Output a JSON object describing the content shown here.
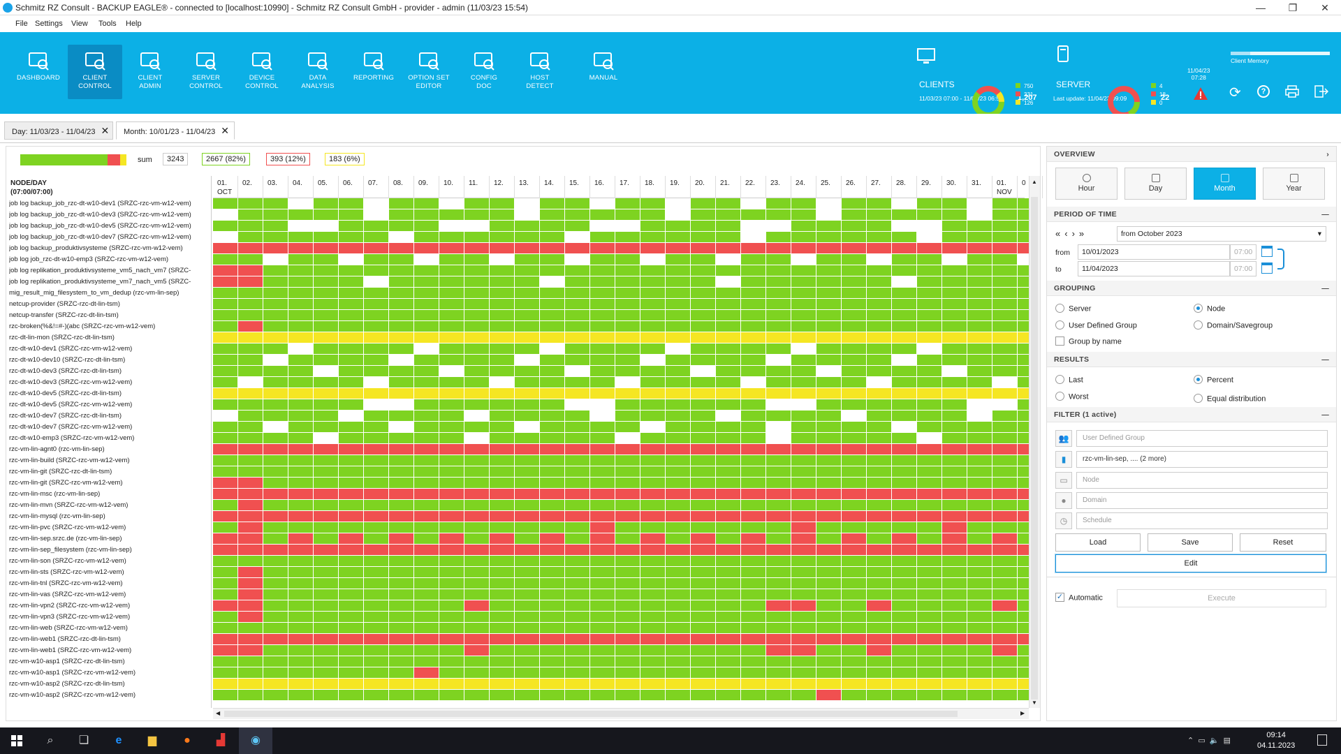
{
  "window": {
    "title": "Schmitz RZ Consult - BACKUP EAGLE® - connected to [localhost:10990] - Schmitz RZ Consult GmbH - provider - admin (11/03/23 15:54)",
    "controls": [
      "—",
      "❐",
      "✕"
    ]
  },
  "menu": [
    "File",
    "Settings",
    "View",
    "Tools",
    "Help"
  ],
  "ribbon": {
    "buttons": [
      {
        "label": "DASHBOARD",
        "icon": "dashboard-icon"
      },
      {
        "label": "CLIENT\nCONTROL",
        "icon": "client-control-icon",
        "active": true
      },
      {
        "label": "CLIENT\nADMIN",
        "icon": "client-admin-icon"
      },
      {
        "label": "SERVER\nCONTROL",
        "icon": "server-control-icon"
      },
      {
        "label": "DEVICE\nCONTROL",
        "icon": "device-control-icon"
      },
      {
        "label": "DATA\nANALYSIS",
        "icon": "data-analysis-icon"
      },
      {
        "label": "REPORTING",
        "icon": "reporting-icon"
      },
      {
        "label": "OPTION SET\nEDITOR",
        "icon": "option-set-editor-icon"
      },
      {
        "label": "CONFIG\nDOC",
        "icon": "config-doc-icon"
      },
      {
        "label": "HOST\nDETECT",
        "icon": "host-detect-icon"
      },
      {
        "label": "MANUAL",
        "icon": "manual-icon"
      }
    ],
    "clients": {
      "label": "CLIENTS",
      "range": "11/03/23 07:00 - 11/04/23 06:59",
      "total": "1,207",
      "counts": [
        "750",
        "331",
        "126"
      ]
    },
    "server": {
      "label": "SERVER",
      "last_update": "Last update: 11/04/23 09:09",
      "total": "22",
      "counts": [
        "4",
        "18",
        "0"
      ]
    },
    "datetime": "11/04/23\n07:28",
    "client_memory": "Client Memory"
  },
  "tabs": [
    {
      "label": "Day: 11/03/23 - 11/04/23",
      "active": false
    },
    {
      "label": "Month: 10/01/23 - 11/04/23",
      "active": true
    }
  ],
  "stats": {
    "sum_label": "sum",
    "sum": "3243",
    "green": "2667 (82%)",
    "red": "393 (12%)",
    "yellow": "183 (6%)"
  },
  "grid": {
    "node_header": "NODE/DAY\n(07:00/07:00)",
    "days": [
      "01.\nOCT",
      "02.",
      "03.",
      "04.",
      "05.",
      "06.",
      "07.",
      "08.",
      "09.",
      "10.",
      "11.",
      "12.",
      "13.",
      "14.",
      "15.",
      "16.",
      "17.",
      "18.",
      "19.",
      "20.",
      "21.",
      "22.",
      "23.",
      "24.",
      "25.",
      "26.",
      "27.",
      "28.",
      "29.",
      "30.",
      "31.",
      "01.\nNOV",
      "0"
    ],
    "nodes": [
      "job log backup_job_rzc-dt-w10-dev1 (SRZC-rzc-vm-w12-vem)",
      "job log backup_job_rzc-dt-w10-dev3 (SRZC-rzc-vm-w12-vem)",
      "job log backup_job_rzc-dt-w10-dev5 (SRZC-rzc-vm-w12-vem)",
      "job log backup_job_rzc-dt-w10-dev7 (SRZC-rzc-vm-w12-vem)",
      "job log backup_produktivsysteme (SRZC-rzc-vm-w12-vem)",
      "job log job_rzc-dt-w10-emp3 (SRZC-rzc-vm-w12-vem)",
      "job log replikation_produktivsysteme_vm5_nach_vm7 (SRZC-",
      "job log replikation_produktivsysteme_vm7_nach_vm5 (SRZC-",
      "mig_result_mig_filesystem_to_vm_dedup (rzc-vm-lin-sep)",
      "netcup-provider (SRZC-rzc-dt-lin-tsm)",
      "netcup-transfer (SRZC-rzc-dt-lin-tsm)",
      "rzc-broken(%&!=#-)(abc (SRZC-rzc-vm-w12-vem)",
      "rzc-dt-lin-mon (SRZC-rzc-dt-lin-tsm)",
      "rzc-dt-w10-dev1 (SRZC-rzc-vm-w12-vem)",
      "rzc-dt-w10-dev10 (SRZC-rzc-dt-lin-tsm)",
      "rzc-dt-w10-dev3 (SRZC-rzc-dt-lin-tsm)",
      "rzc-dt-w10-dev3 (SRZC-rzc-vm-w12-vem)",
      "rzc-dt-w10-dev5 (SRZC-rzc-dt-lin-tsm)",
      "rzc-dt-w10-dev5 (SRZC-rzc-vm-w12-vem)",
      "rzc-dt-w10-dev7 (SRZC-rzc-dt-lin-tsm)",
      "rzc-dt-w10-dev7 (SRZC-rzc-vm-w12-vem)",
      "rzc-dt-w10-emp3 (SRZC-rzc-vm-w12-vem)",
      "rzc-vm-lin-agnt0 (rzc-vm-lin-sep)",
      "rzc-vm-lin-build (SRZC-rzc-vm-w12-vem)",
      "rzc-vm-lin-git (SRZC-rzc-dt-lin-tsm)",
      "rzc-vm-lin-git (SRZC-rzc-vm-w12-vem)",
      "rzc-vm-lin-msc (rzc-vm-lin-sep)",
      "rzc-vm-lin-mvn (SRZC-rzc-vm-w12-vem)",
      "rzc-vm-lin-mysql (rzc-vm-lin-sep)",
      "rzc-vm-lin-pvc (SRZC-rzc-vm-w12-vem)",
      "rzc-vm-lin-sep.srzc.de (rzc-vm-lin-sep)",
      "rzc-vm-lin-sep_filesystem (rzc-vm-lin-sep)",
      "rzc-vm-lin-son (SRZC-rzc-vm-w12-vem)",
      "rzc-vm-lin-sts (SRZC-rzc-vm-w12-vem)",
      "rzc-vm-lin-tnl (SRZC-rzc-vm-w12-vem)",
      "rzc-vm-lin-vas (SRZC-rzc-vm-w12-vem)",
      "rzc-vm-lin-vpn2 (SRZC-rzc-vm-w12-vem)",
      "rzc-vm-lin-vpn3 (SRZC-rzc-vm-w12-vem)",
      "rzc-vm-lin-web (SRZC-rzc-vm-w12-vem)",
      "rzc-vm-lin-web1 (SRZC-rzc-dt-lin-tsm)",
      "rzc-vm-lin-web1 (SRZC-rzc-vm-w12-vem)",
      "rzc-vm-w10-asp1 (SRZC-rzc-dt-lin-tsm)",
      "rzc-vm-w10-asp1 (SRZC-rzc-vm-w12-vem)",
      "rzc-vm-w10-asp2 (SRZC-rzc-dt-lin-tsm)",
      "rzc-vm-w10-asp2 (SRZC-rzc-vm-w12-vem)"
    ],
    "colors": {
      "G": "#7ed321",
      "R": "#f05050",
      "Y": "#f5e623",
      "W": "#ffffff"
    },
    "rows": [
      "GGGWGGWGGWGGWGGWGGWGGWGGWGGWGGWGG",
      "WGGGGGWGGGGGWGGGGGWGGGGGWGGGGGWGG",
      "GGGWWGGGGWWGGGGWWGGGGWWGGGGWWGGGG",
      "WGGGGGGWGGGGGGWGGGGGGWGGGGGGWGGGG",
      "RRRRRRRRRRRRRRRRRRRRRRRRRRRRRRRRR",
      "GGWGGWGGWGGWGGWGGWGGWGGWGGWGGWGGW",
      "RRGGGGGGGGGGGGGGGGGGGGGGGGGGGGGGG",
      "RRGGGGWGGGGGGWGGGGGGWGGGGGGWGGGGG",
      "GGGGGGGGGGGGGGGGGGGGGGGGGGGGGGGGG",
      "GGGGGGGGGGGGGGGGGGGGGGGGGGGGGGGGG",
      "GGGGGGGGGGGGGGGGGGGGGGGGGGGGGGGGG",
      "GRGGGGGGGGGGGGGGGGGGGGGGGGGGGGGGG",
      "YYYYYYYYYYYYYYYYYYYYYYYYYYYYYYYYY",
      "GGGWGGGGWGGGGWGGGGWGGGGWGGGGWGGGG",
      "GGWGGGGWGGGGWGGGGWGGGGWGGGGWGGGGG",
      "GGGGWGGGGWGGGGWGGGGWGGGGWGGGGWGGG",
      "GWGGGGWGGGGWGGGGWGGGGWGGGGWGGGGWG",
      "YYYYYYYYYYYYYYYYYYYYYYYYYYYYYYYYY",
      "GGGGGGWWGGGGGGWWGGGGGGWWGGGGGGWWG",
      "WGGGGWGGGGWGGGGWGGGGWGGGGWGGGGWGG",
      "GGWGGGGWGGGGWGGGGWGGGGWGGGGWGGGGG",
      "GGGGWGGGGGWGGGGGWGGGGGWGGGGGWGGGG",
      "RRRRRRRRRRRRRRRRRRRRRRRRRRRRRRRRR",
      "GGGGGGGGGGGGGGGGGGGGGGGGGGGGGGGGG",
      "GGGGGGGGGGGGGGGGGGGGGGGGGGGGGGGGG",
      "RRGGGGGGGGGGGGGGGGGGGGGGGGGGGGGGG",
      "RRRRRRRRRRRRRRRRRRRRRRRRRRRRRRRRR",
      "GRGGGGGGGGGGGGGGGGGGGGGGGGGGGGGGG",
      "RRRRRRRRRRRRRRRRRRRRRRRRRRRRRRRRR",
      "GRGGGGGGGGGGGGGRGGGGGGGRGGGGGRGGG",
      "RRGRGRGRGRGRGRGRGRGRGRGRGRGRGRGRG",
      "RRRRRRRRRRRRRRRRRRRRRRRRRRRRRRRRR",
      "GGGGGGGGGGGGGGGGGGGGGGGGGGGGGGGGG",
      "GRGGGGGGGGGGGGGGGGGGGGGGGGGGGGGGG",
      "GRGGGGGGGGGGGGGGGGGGGGGGGGGGGGGGG",
      "GRGGGGGGGGGGGGGGGGGGGGGGGGGGGGGGG",
      "RRGGGGGGGGRGGGGGGGGGGGRRGGRGGGGRG",
      "GRGGGGGGGGGGGGGGGGGGGGGGGGGGGGGGG",
      "GGGGGGGGGGGGGGGGGGGGGGGGGGGGGGGGG",
      "RRRRRRRRRRRRRRRRRRRRRRRRRRRRRRRRR",
      "RRGGGGGGGGRGGGGGGGGGGGRRGGRGGGGRG",
      "GGGGGGGGGGGGGGGGGGGGGGGGGGGGGGGGG",
      "GGGGGGGGRGGGGGGGGGGGGGGGGGGGGGGGG",
      "YYYYYYYYYYYYYYYYYYYYYYYYYYYYYYYYY",
      "GGGGGGGGGGGGGGGGGGGGGGGGRGGGGGGGG"
    ]
  },
  "overview": {
    "title": "OVERVIEW",
    "buttons": [
      {
        "label": "Hour"
      },
      {
        "label": "Day"
      },
      {
        "label": "Month",
        "active": true
      },
      {
        "label": "Year"
      }
    ]
  },
  "period": {
    "title": "PERIOD OF TIME",
    "nav": [
      "«",
      "‹",
      "›",
      "»"
    ],
    "select": "from October 2023",
    "from_label": "from",
    "from_date": "10/01/2023",
    "from_time": "07:00",
    "to_label": "to",
    "to_date": "11/04/2023",
    "to_time": "07:00"
  },
  "grouping": {
    "title": "GROUPING",
    "server": "Server",
    "node": "Node",
    "udg": "User Defined Group",
    "domain": "Domain/Savegroup",
    "byname": "Group by name"
  },
  "results": {
    "title": "RESULTS",
    "last": "Last",
    "percent": "Percent",
    "worst": "Worst",
    "equal": "Equal distribution"
  },
  "filter": {
    "title": "FILTER (1 active)",
    "fields": [
      {
        "placeholder": "User Defined Group",
        "icon": "group-icon"
      },
      {
        "value": "rzc-vm-lin-sep, .... (2 more)",
        "icon": "server-icon"
      },
      {
        "placeholder": "Node",
        "icon": "monitor-icon"
      },
      {
        "placeholder": "Domain",
        "icon": "globe-icon"
      },
      {
        "placeholder": "Schedule",
        "icon": "clock-icon"
      }
    ],
    "load": "Load",
    "save": "Save",
    "reset": "Reset",
    "edit": "Edit"
  },
  "footer": {
    "automatic": "Automatic",
    "execute": "Execute"
  },
  "taskbar": {
    "time": "09:14",
    "date": "04.11.2023"
  }
}
